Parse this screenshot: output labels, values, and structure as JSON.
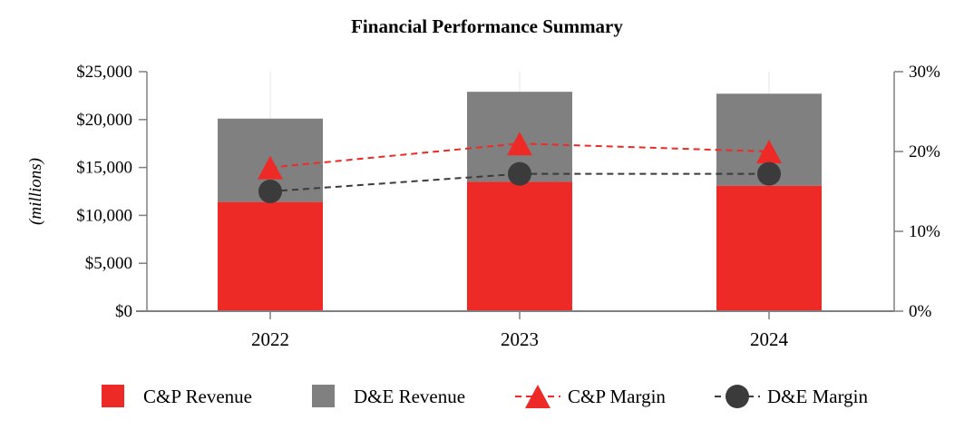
{
  "chart_data": {
    "type": "bar",
    "title": "Financial Performance Summary",
    "categories": [
      "2022",
      "2023",
      "2024"
    ],
    "ylabel": "(millions)",
    "y_left": {
      "ticks": [
        0,
        5000,
        10000,
        15000,
        20000,
        25000
      ],
      "tick_labels": [
        "$0",
        "$5,000",
        "$10,000",
        "$15,000",
        "$20,000",
        "$25,000"
      ],
      "range": [
        0,
        25000
      ]
    },
    "y_right": {
      "ticks": [
        0,
        10,
        20,
        30
      ],
      "tick_labels": [
        "0%",
        "10%",
        "20%",
        "30%"
      ],
      "range": [
        0,
        30
      ]
    },
    "stacked": true,
    "grid": false,
    "legend_position": "bottom",
    "bar_series": [
      {
        "name": "C&P Revenue",
        "values": [
          11400,
          13500,
          13100
        ],
        "color": "#ee2a27"
      },
      {
        "name": "D&E Revenue",
        "values": [
          8700,
          9400,
          9600
        ],
        "color": "#808080"
      }
    ],
    "line_series": [
      {
        "name": "C&P Margin",
        "values": [
          18.0,
          21.0,
          20.0
        ],
        "color": "#ee2a27",
        "marker": "triangle",
        "axis": "right"
      },
      {
        "name": "D&E Margin",
        "values": [
          15.0,
          17.2,
          17.2
        ],
        "color": "#3b3b3b",
        "marker": "circle",
        "axis": "right"
      }
    ]
  }
}
